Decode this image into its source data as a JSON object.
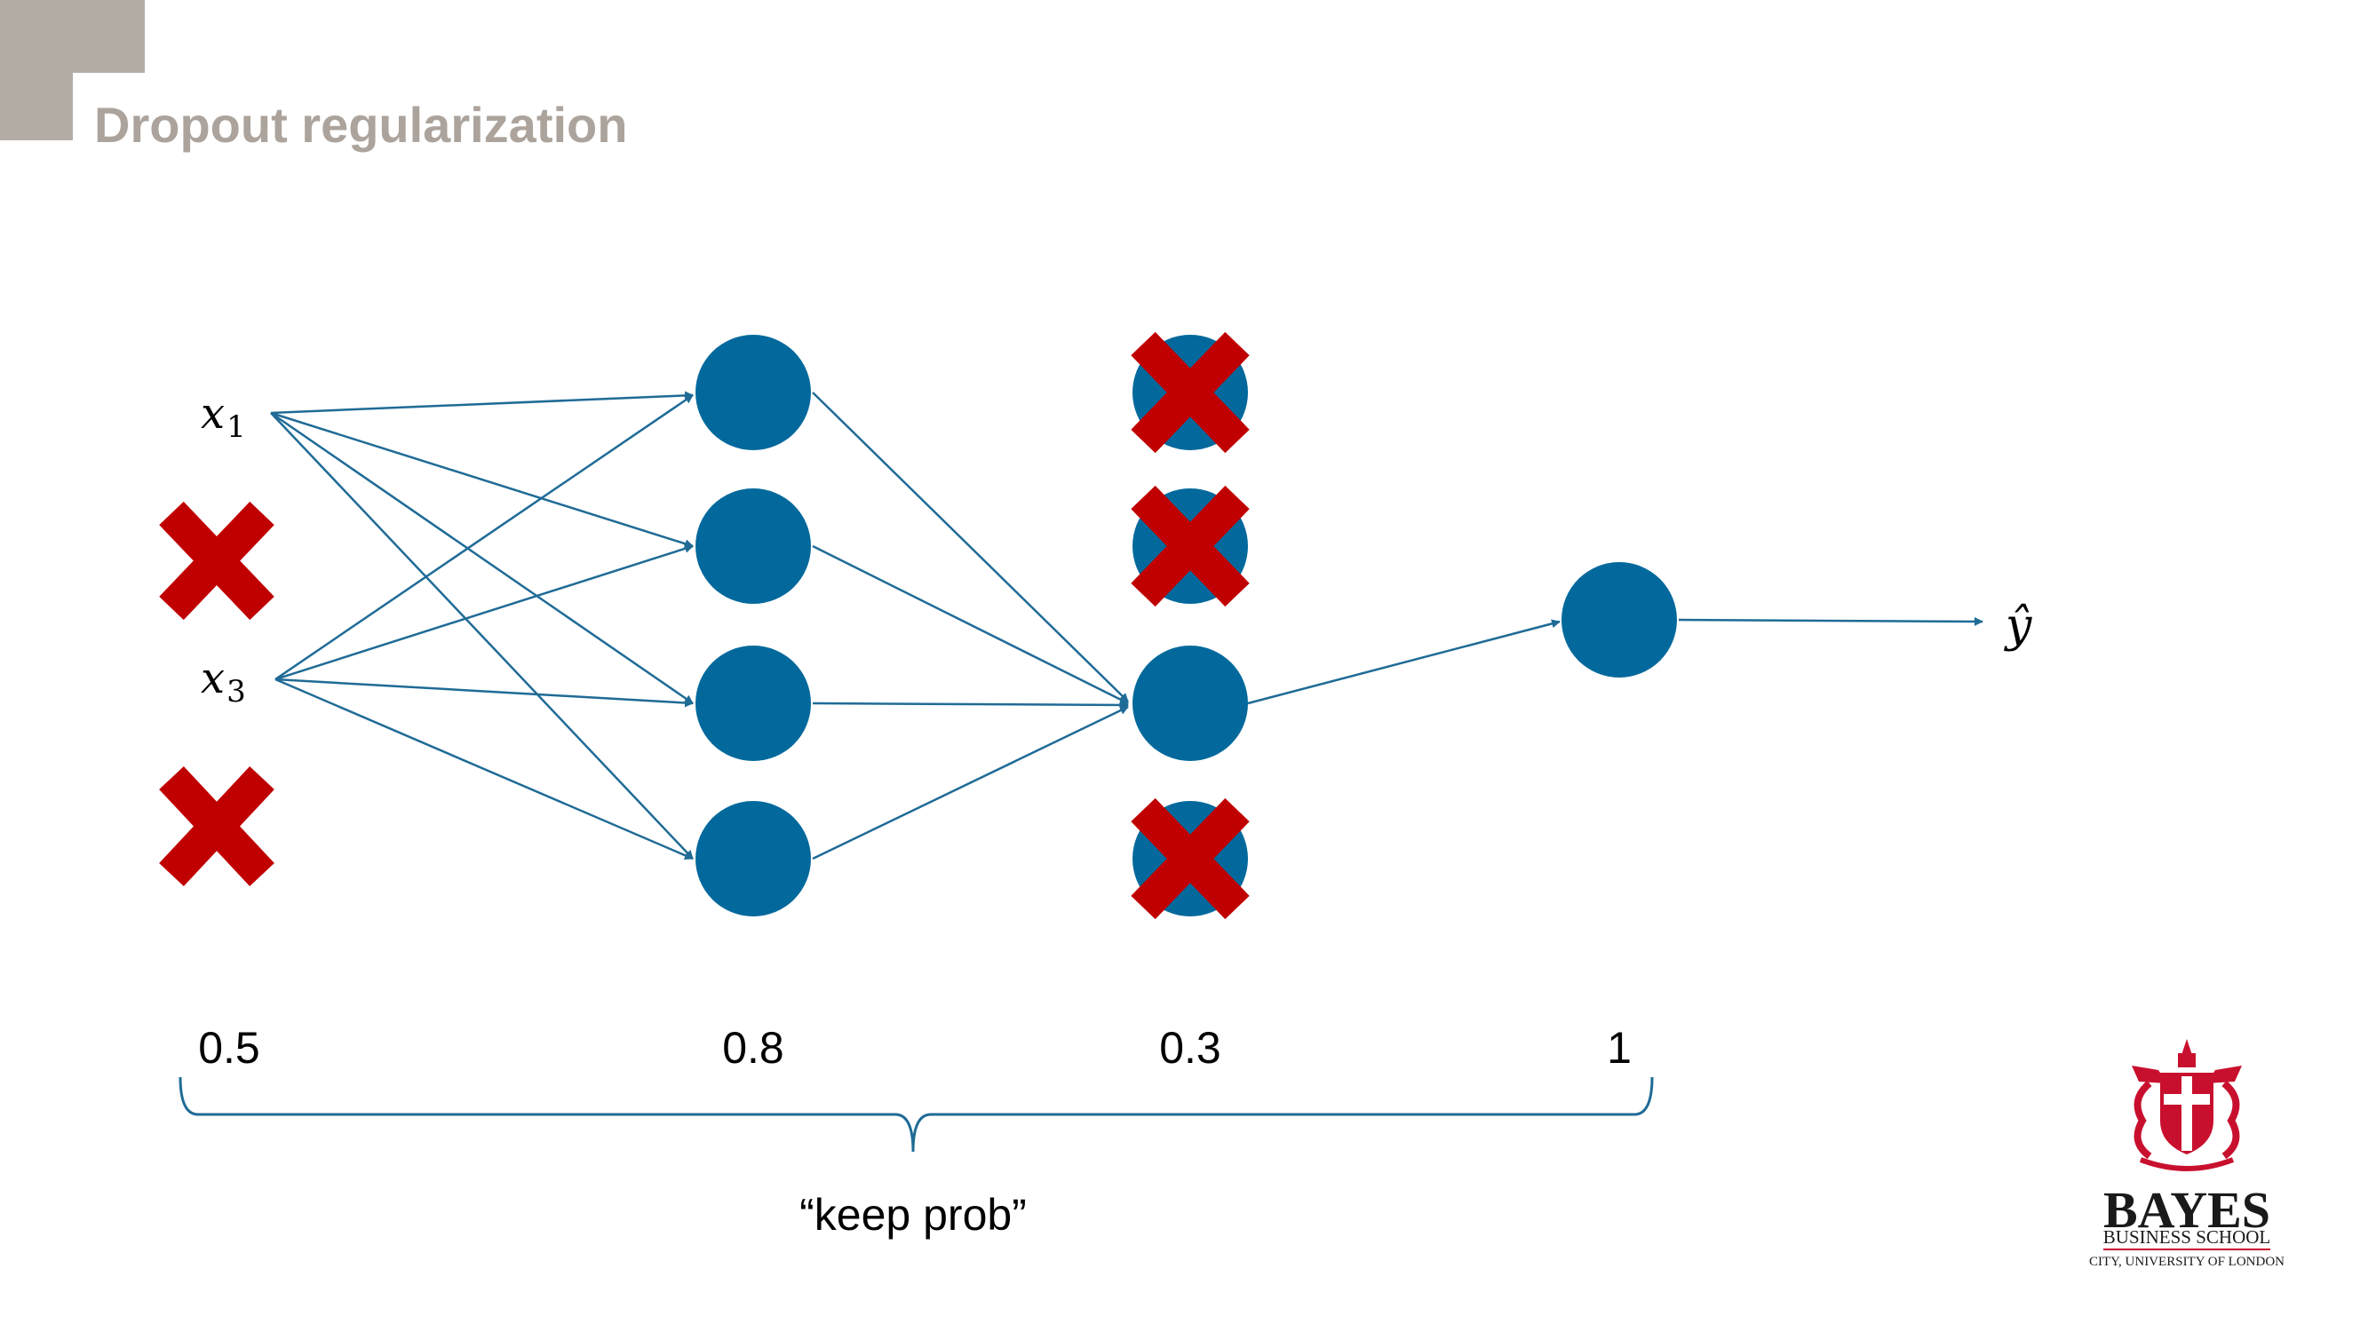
{
  "slide": {
    "title": "Dropout regularization"
  },
  "inputs": [
    {
      "var": "x",
      "sub": "1"
    },
    {
      "var": "x",
      "sub": "3"
    }
  ],
  "output": {
    "label": "ŷ"
  },
  "keep_prob": {
    "values": [
      "0.5",
      "0.8",
      "0.3",
      "1"
    ],
    "label": "“keep prob”"
  },
  "logo": {
    "line1": "BAYES",
    "line2": "BUSINESS SCHOOL",
    "line3": "CITY, UNIVERSITY OF LONDON"
  },
  "colors": {
    "node": "#03699c",
    "edge": "#1f6b96",
    "cross": "#c00000",
    "title": "#aca49c",
    "corner": "#b4ada6",
    "logo": "#c8102e"
  }
}
